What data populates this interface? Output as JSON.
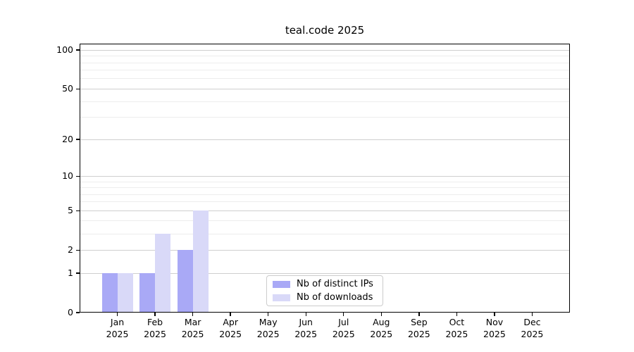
{
  "chart_data": {
    "type": "bar",
    "title": "teal.code 2025",
    "categories": [
      "Jan",
      "Feb",
      "Mar",
      "Apr",
      "May",
      "Jun",
      "Jul",
      "Aug",
      "Sep",
      "Oct",
      "Nov",
      "Dec"
    ],
    "x_year": "2025",
    "series": [
      {
        "name": "Nb of distinct IPs",
        "color": "#a9a9f6",
        "values": [
          1,
          1,
          2,
          0,
          0,
          0,
          0,
          0,
          0,
          0,
          0,
          0
        ]
      },
      {
        "name": "Nb of downloads",
        "color": "#d9d9f8",
        "values": [
          1,
          3,
          5,
          0,
          0,
          0,
          0,
          0,
          0,
          0,
          0,
          0
        ]
      }
    ],
    "y_axis": {
      "scale": "log1p",
      "major_ticks": [
        100,
        50,
        20,
        10,
        5,
        2,
        1,
        0
      ],
      "minor_ticks": [
        90,
        80,
        70,
        60,
        40,
        30,
        9,
        8,
        7,
        6,
        4,
        3
      ],
      "ylim": [
        0,
        112
      ]
    },
    "legend_position": "lower center",
    "grid": true
  }
}
